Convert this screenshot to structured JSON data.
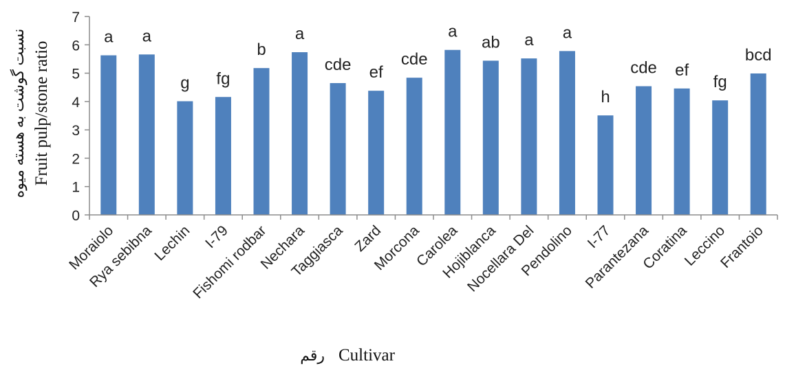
{
  "chart_data": {
    "type": "bar",
    "categories": [
      "Moraiolo",
      "Rya sebibna",
      "Lechin",
      "I-79",
      "Fishomi rodbar",
      "Nechara",
      "Taggiasca",
      "Zard",
      "Morcona",
      "Carolea",
      "Hojiblanca",
      "Nocellara Del",
      "Pendolino",
      "I-77",
      "Parantezana",
      "Coratina",
      "Leccino",
      "Frantoio"
    ],
    "values": [
      5.63,
      5.66,
      4.01,
      4.16,
      5.18,
      5.74,
      4.65,
      4.38,
      4.84,
      5.82,
      5.44,
      5.52,
      5.78,
      3.51,
      4.54,
      4.46,
      4.04,
      4.99
    ],
    "significance_letters": [
      "a",
      "a",
      "g",
      "fg",
      "b",
      "a",
      "cde",
      "ef",
      "cde",
      "a",
      "ab",
      "a",
      "a",
      "h",
      "cde",
      "ef",
      "fg",
      "bcd"
    ],
    "ylim": [
      0,
      7
    ],
    "yticks": [
      0,
      1,
      2,
      3,
      4,
      5,
      6,
      7
    ],
    "ylabel": "Fruit pulp/stone ratio",
    "ylabel_fa": "نسبت گوشت به هسته میوه",
    "xlabel": "Cultivar",
    "xlabel_fa": "رقم",
    "grid": false,
    "colors": {
      "bar": "#4f81bd",
      "axis": "#8c8c8c"
    }
  }
}
